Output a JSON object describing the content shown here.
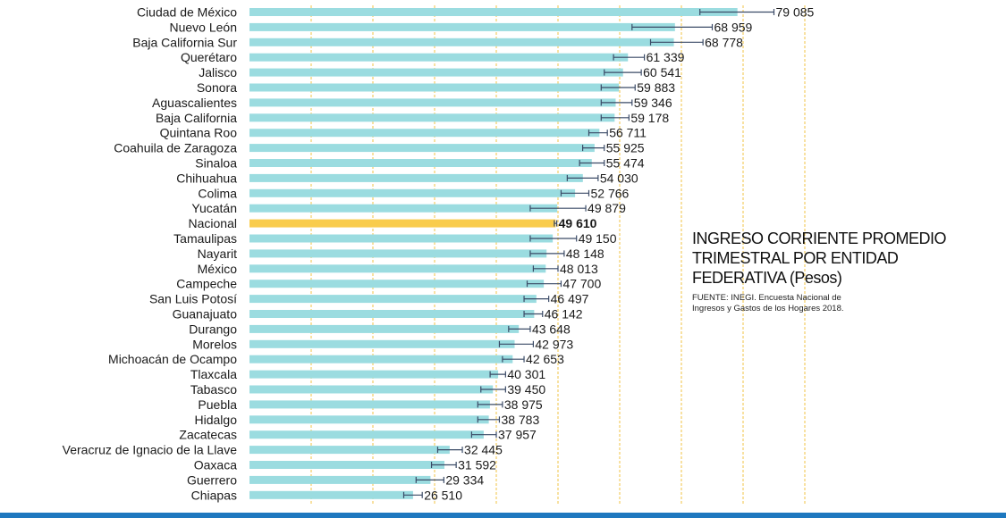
{
  "colors": {
    "bar": "#9BDCE0",
    "highlight_bar": "#F9CC4C",
    "gridline": "#F2C343",
    "error_bar": "#3A4A66",
    "bottom_band": "#1E78BF"
  },
  "chart_data": {
    "type": "bar",
    "orientation": "horizontal",
    "title": "INGRESO CORRIENTE PROMEDIO TRIMESTRAL POR ENTIDAD FEDERATIVA (Pesos)",
    "title_lines": [
      "INGRESO CORRIENTE PROMEDIO",
      "TRIMESTRAL POR ENTIDAD",
      "FEDERATIVA (Pesos)"
    ],
    "source_lines": [
      "FUENTE: INEGI. Encuesta Nacional de",
      "Ingresos y Gastos de los Hogares 2018."
    ],
    "highlight": "Nacional",
    "xlim": [
      0,
      90000
    ],
    "gridline_step": 10000,
    "categories": [
      "Ciudad de México",
      "Nuevo León",
      "Baja California Sur",
      "Querétaro",
      "Jalisco",
      "Sonora",
      "Aguascalientes",
      "Baja California",
      "Quintana Roo",
      "Coahuila de Zaragoza",
      "Sinaloa",
      "Chihuahua",
      "Colima",
      "Yucatán",
      "Nacional",
      "Tamaulipas",
      "Nayarit",
      "México",
      "Campeche",
      "San Luis Potosí",
      "Guanajuato",
      "Durango",
      "Morelos",
      "Michoacán de Ocampo",
      "Tlaxcala",
      "Tabasco",
      "Puebla",
      "Hidalgo",
      "Zacatecas",
      "Veracruz de Ignacio de la Llave",
      "Oaxaca",
      "Guerrero",
      "Chiapas"
    ],
    "values": [
      79085,
      68959,
      68778,
      61339,
      60541,
      59883,
      59346,
      59178,
      56711,
      55925,
      55474,
      54030,
      52766,
      49879,
      49610,
      49150,
      48148,
      48013,
      47700,
      46497,
      46142,
      43648,
      42973,
      42653,
      40301,
      39450,
      38975,
      38783,
      37957,
      32445,
      31592,
      29334,
      26510
    ],
    "value_labels": [
      "79 085",
      "68 959",
      "68 778",
      "61 339",
      "60 541",
      "59 883",
      "59 346",
      "59 178",
      "56 711",
      "55 925",
      "55 474",
      "54 030",
      "52 766",
      "49 879",
      "49 610",
      "49 150",
      "48 148",
      "48 013",
      "47 700",
      "46 497",
      "46 142",
      "43 648",
      "42 973",
      "42 653",
      "40 301",
      "39 450",
      "38 975",
      "38 783",
      "37 957",
      "32 445",
      "31 592",
      "29 334",
      "26 510"
    ],
    "error_low": [
      73000,
      62000,
      65000,
      59000,
      57500,
      57000,
      57000,
      57000,
      55000,
      54000,
      53500,
      51500,
      50500,
      45500,
      49400,
      45500,
      45500,
      46000,
      45000,
      44500,
      44500,
      42000,
      40500,
      41000,
      39000,
      37500,
      37000,
      37000,
      36000,
      30500,
      29500,
      27000,
      25000
    ],
    "error_high": [
      85000,
      75000,
      73500,
      64000,
      63500,
      62500,
      62000,
      61500,
      58000,
      57500,
      57500,
      56500,
      55000,
      54500,
      49800,
      53000,
      51000,
      50000,
      50500,
      48500,
      47500,
      45500,
      46000,
      44500,
      41500,
      41500,
      41000,
      40500,
      40000,
      34500,
      33500,
      31500,
      28000
    ]
  }
}
